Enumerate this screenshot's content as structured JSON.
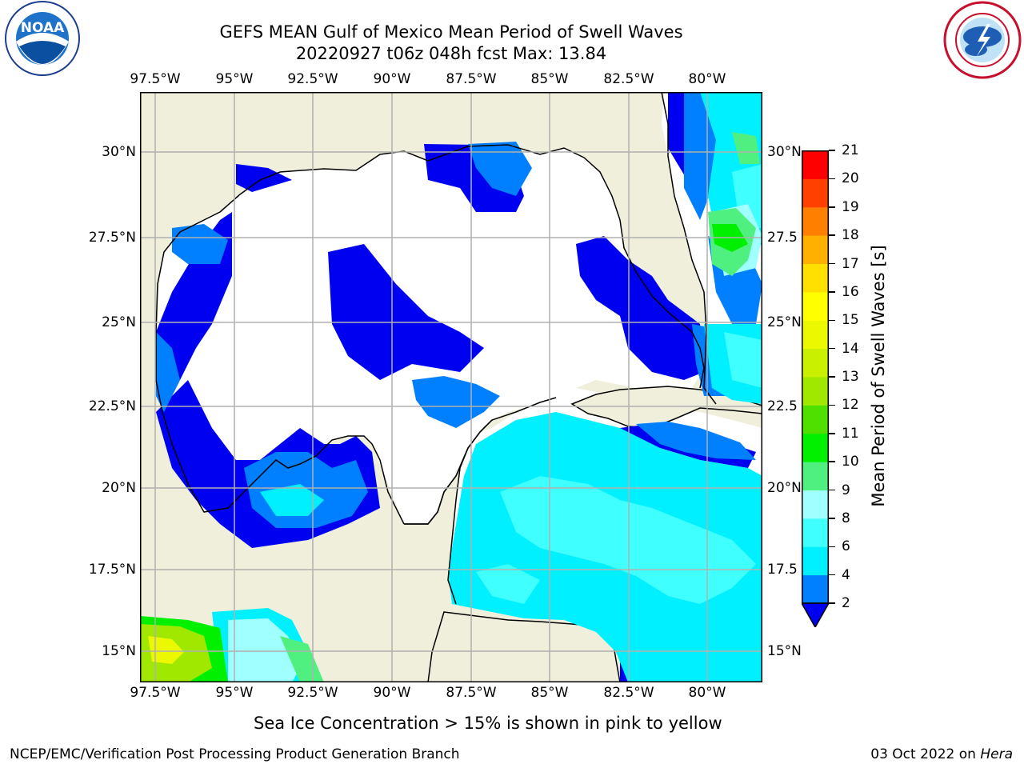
{
  "header": {
    "title_line1": "GEFS MEAN Gulf of Mexico Mean Period of Swell Waves",
    "title_line2": "20220927 t06z 048h fcst   Max: 13.84"
  },
  "logos": {
    "noaa_text": "NOAA",
    "noaa_ring_top": "NATIONAL OCEANIC AND ATMOSPHERIC ADMINISTRATION",
    "noaa_ring_bottom": "U.S. DEPARTMENT OF COMMERCE",
    "nws_ring": "NATIONAL WEATHER SERVICE"
  },
  "map": {
    "lon_labels": [
      "97.5°W",
      "95°W",
      "92.5°W",
      "90°W",
      "87.5°W",
      "85°W",
      "82.5°W",
      "80°W"
    ],
    "lat_labels_left": [
      "30°N",
      "27.5°N",
      "25°N",
      "22.5°N",
      "20°N",
      "17.5°N",
      "15°N"
    ],
    "lat_labels_right": [
      "30°N",
      "27.5",
      "25°N",
      "22.5",
      "20°N",
      "17.5",
      "15°N"
    ],
    "colors": {
      "land": "#efefdc",
      "water_none": "#ffffff",
      "grid": "#b0b0b0"
    }
  },
  "colorbar": {
    "title": "Mean Period of Swell Waves [s]",
    "levels": [
      "2",
      "4",
      "6",
      "8",
      "9",
      "10",
      "11",
      "12",
      "13",
      "14",
      "15",
      "16",
      "17",
      "18",
      "19",
      "20",
      "21"
    ],
    "colors": [
      "#0000f0",
      "#0080ff",
      "#00f0ff",
      "#40ffff",
      "#a0ffff",
      "#50f080",
      "#00f000",
      "#50e000",
      "#a0e800",
      "#c8f000",
      "#ecf800",
      "#ffff00",
      "#ffe000",
      "#ffb000",
      "#ff8000",
      "#ff4000",
      "#ff0000"
    ]
  },
  "footer": {
    "ice_note": "Sea Ice Concentration > 15% is shown in pink to yellow",
    "branch": "NCEP/EMC/Verification Post Processing Product Generation Branch",
    "date": "03 Oct 2022 on ",
    "host": "Hera"
  }
}
